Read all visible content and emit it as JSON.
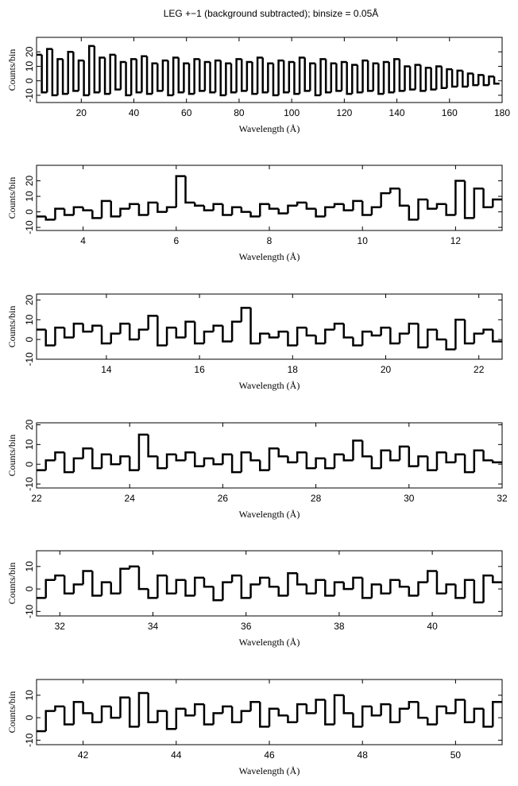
{
  "title": "LEG +−1 (background subtracted); binsize = 0.05Å",
  "chart_data": [
    {
      "type": "step",
      "xlabel": "Wavelength (Å)",
      "ylabel": "Counts/bin",
      "color": "#000000",
      "xlim": [
        3,
        180
      ],
      "xticks": [
        20,
        40,
        60,
        80,
        100,
        120,
        140,
        160,
        180
      ],
      "ylim": [
        -15,
        30
      ],
      "yticks": [
        -10,
        0,
        10,
        20
      ],
      "x": [
        4,
        6,
        8,
        10,
        12,
        14,
        16,
        18,
        20,
        22,
        24,
        26,
        28,
        30,
        32,
        34,
        36,
        38,
        40,
        42,
        44,
        46,
        48,
        50,
        52,
        54,
        56,
        58,
        60,
        62,
        64,
        66,
        68,
        70,
        72,
        74,
        76,
        78,
        80,
        82,
        84,
        86,
        88,
        90,
        92,
        94,
        96,
        98,
        100,
        102,
        104,
        106,
        108,
        110,
        112,
        114,
        116,
        118,
        120,
        122,
        124,
        126,
        128,
        130,
        132,
        134,
        136,
        138,
        140,
        142,
        144,
        146,
        148,
        150,
        152,
        154,
        156,
        158,
        160,
        162,
        164,
        166,
        168,
        170,
        172,
        174,
        176,
        178
      ],
      "values": [
        18,
        -8,
        22,
        -10,
        15,
        -9,
        20,
        -7,
        14,
        -10,
        24,
        -8,
        16,
        -9,
        18,
        -6,
        13,
        -10,
        15,
        -8,
        17,
        -9,
        12,
        -7,
        14,
        -10,
        16,
        -8,
        12,
        -9,
        15,
        -7,
        13,
        -8,
        14,
        -10,
        12,
        -8,
        15,
        -7,
        13,
        -9,
        16,
        -8,
        12,
        -10,
        14,
        -8,
        13,
        -9,
        16,
        -7,
        12,
        -10,
        15,
        -8,
        12,
        -7,
        13,
        -9,
        11,
        -8,
        14,
        -7,
        12,
        -9,
        13,
        -8,
        15,
        -7,
        10,
        -6,
        11,
        -7,
        9,
        -6,
        10,
        -5,
        8,
        -4,
        7,
        -4,
        5,
        -3,
        4,
        -3,
        3,
        -2
      ]
    },
    {
      "type": "step",
      "xlabel": "Wavelength (Å)",
      "ylabel": "Counts/bin",
      "color": "#000000",
      "xlim": [
        3,
        13
      ],
      "xticks": [
        4,
        6,
        8,
        10,
        12
      ],
      "ylim": [
        -12,
        30
      ],
      "yticks": [
        -10,
        0,
        10,
        20
      ],
      "x": [
        3.1,
        3.3,
        3.5,
        3.7,
        3.9,
        4.1,
        4.3,
        4.5,
        4.7,
        4.9,
        5.1,
        5.3,
        5.5,
        5.7,
        5.9,
        6.1,
        6.3,
        6.5,
        6.7,
        6.9,
        7.1,
        7.3,
        7.5,
        7.7,
        7.9,
        8.1,
        8.3,
        8.5,
        8.7,
        8.9,
        9.1,
        9.3,
        9.5,
        9.7,
        9.9,
        10.1,
        10.3,
        10.5,
        10.7,
        10.9,
        11.1,
        11.3,
        11.5,
        11.7,
        11.9,
        12.1,
        12.3,
        12.5,
        12.7,
        12.9
      ],
      "values": [
        -3,
        -5,
        2,
        -2,
        3,
        1,
        -4,
        7,
        -3,
        2,
        5,
        -2,
        6,
        0,
        3,
        23,
        6,
        4,
        1,
        5,
        -2,
        3,
        0,
        -3,
        5,
        2,
        -1,
        4,
        6,
        2,
        -3,
        3,
        5,
        1,
        7,
        -2,
        3,
        12,
        15,
        4,
        -5,
        8,
        2,
        5,
        -2,
        20,
        -4,
        15,
        3,
        8
      ]
    },
    {
      "type": "step",
      "xlabel": "Wavelength (Å)",
      "ylabel": "Counts/bin",
      "color": "#000000",
      "xlim": [
        12.5,
        22.5
      ],
      "xticks": [
        14,
        16,
        18,
        20,
        22
      ],
      "ylim": [
        -10,
        23
      ],
      "yticks": [
        -10,
        0,
        10,
        20
      ],
      "x": [
        12.6,
        12.8,
        13.0,
        13.2,
        13.4,
        13.6,
        13.8,
        14.0,
        14.2,
        14.4,
        14.6,
        14.8,
        15.0,
        15.2,
        15.4,
        15.6,
        15.8,
        16.0,
        16.2,
        16.4,
        16.6,
        16.8,
        17.0,
        17.2,
        17.4,
        17.6,
        17.8,
        18.0,
        18.2,
        18.4,
        18.6,
        18.8,
        19.0,
        19.2,
        19.4,
        19.6,
        19.8,
        20.0,
        20.2,
        20.4,
        20.6,
        20.8,
        21.0,
        21.2,
        21.4,
        21.6,
        21.8,
        22.0,
        22.2,
        22.4
      ],
      "values": [
        5,
        -3,
        6,
        1,
        8,
        4,
        7,
        -2,
        3,
        8,
        0,
        5,
        12,
        -3,
        6,
        1,
        9,
        -2,
        4,
        7,
        -1,
        9,
        16,
        -2,
        3,
        1,
        4,
        -3,
        6,
        2,
        -2,
        5,
        8,
        1,
        -3,
        4,
        2,
        6,
        -2,
        3,
        8,
        -4,
        5,
        0,
        -5,
        10,
        -2,
        3,
        5,
        -1
      ]
    },
    {
      "type": "step",
      "xlabel": "Wavelength (Å)",
      "ylabel": "Counts/bin",
      "color": "#000000",
      "xlim": [
        22,
        32
      ],
      "xticks": [
        22,
        24,
        26,
        28,
        30,
        32
      ],
      "ylim": [
        -12,
        21
      ],
      "yticks": [
        -10,
        0,
        10,
        20
      ],
      "x": [
        22.1,
        22.3,
        22.5,
        22.7,
        22.9,
        23.1,
        23.3,
        23.5,
        23.7,
        23.9,
        24.1,
        24.3,
        24.5,
        24.7,
        24.9,
        25.1,
        25.3,
        25.5,
        25.7,
        25.9,
        26.1,
        26.3,
        26.5,
        26.7,
        26.9,
        27.1,
        27.3,
        27.5,
        27.7,
        27.9,
        28.1,
        28.3,
        28.5,
        28.7,
        28.9,
        29.1,
        29.3,
        29.5,
        29.7,
        29.9,
        30.1,
        30.3,
        30.5,
        30.7,
        30.9,
        31.1,
        31.3,
        31.5,
        31.7,
        31.9
      ],
      "values": [
        -3,
        2,
        6,
        -4,
        3,
        8,
        -2,
        5,
        0,
        4,
        -3,
        15,
        4,
        -2,
        5,
        2,
        6,
        -1,
        3,
        0,
        5,
        -4,
        6,
        2,
        -3,
        8,
        4,
        1,
        6,
        -2,
        3,
        -2,
        5,
        2,
        12,
        4,
        -2,
        7,
        2,
        9,
        -1,
        4,
        -3,
        6,
        1,
        5,
        -4,
        7,
        2,
        1
      ]
    },
    {
      "type": "step",
      "xlabel": "Wavelength (Å)",
      "ylabel": "Counts/bin",
      "color": "#000000",
      "xlim": [
        31.5,
        41.5
      ],
      "xticks": [
        32,
        34,
        36,
        38,
        40
      ],
      "ylim": [
        -12,
        17
      ],
      "yticks": [
        -10,
        0,
        10
      ],
      "x": [
        31.6,
        31.8,
        32.0,
        32.2,
        32.4,
        32.6,
        32.8,
        33.0,
        33.2,
        33.4,
        33.6,
        33.8,
        34.0,
        34.2,
        34.4,
        34.6,
        34.8,
        35.0,
        35.2,
        35.4,
        35.6,
        35.8,
        36.0,
        36.2,
        36.4,
        36.6,
        36.8,
        37.0,
        37.2,
        37.4,
        37.6,
        37.8,
        38.0,
        38.2,
        38.4,
        38.6,
        38.8,
        39.0,
        39.2,
        39.4,
        39.6,
        39.8,
        40.0,
        40.2,
        40.4,
        40.6,
        40.8,
        41.0,
        41.2,
        41.4
      ],
      "values": [
        -4,
        4,
        6,
        -2,
        2,
        8,
        -3,
        3,
        -2,
        9,
        10,
        0,
        -4,
        6,
        -2,
        4,
        -3,
        5,
        1,
        -5,
        3,
        6,
        -4,
        2,
        5,
        1,
        -3,
        7,
        2,
        -2,
        4,
        -3,
        3,
        0,
        5,
        -4,
        2,
        -2,
        4,
        1,
        -3,
        3,
        8,
        -2,
        2,
        -4,
        4,
        -6,
        6,
        3
      ]
    },
    {
      "type": "step",
      "xlabel": "Wavelength (Å)",
      "ylabel": "Counts/bin",
      "color": "#000000",
      "xlim": [
        41,
        51
      ],
      "xticks": [
        42,
        44,
        46,
        48,
        50
      ],
      "ylim": [
        -12,
        17
      ],
      "yticks": [
        -10,
        0,
        10
      ],
      "x": [
        41.1,
        41.3,
        41.5,
        41.7,
        41.9,
        42.1,
        42.3,
        42.5,
        42.7,
        42.9,
        43.1,
        43.3,
        43.5,
        43.7,
        43.9,
        44.1,
        44.3,
        44.5,
        44.7,
        44.9,
        45.1,
        45.3,
        45.5,
        45.7,
        45.9,
        46.1,
        46.3,
        46.5,
        46.7,
        46.9,
        47.1,
        47.3,
        47.5,
        47.7,
        47.9,
        48.1,
        48.3,
        48.5,
        48.7,
        48.9,
        49.1,
        49.3,
        49.5,
        49.7,
        49.9,
        50.1,
        50.3,
        50.5,
        50.7,
        50.9
      ],
      "values": [
        -6,
        3,
        5,
        -3,
        7,
        2,
        -2,
        5,
        0,
        9,
        -4,
        11,
        -2,
        3,
        -5,
        4,
        1,
        6,
        -3,
        2,
        5,
        -2,
        3,
        7,
        -4,
        4,
        1,
        -2,
        6,
        2,
        8,
        -3,
        10,
        2,
        -4,
        5,
        1,
        6,
        -2,
        4,
        7,
        0,
        -3,
        5,
        2,
        8,
        -2,
        4,
        -4,
        7
      ]
    }
  ]
}
